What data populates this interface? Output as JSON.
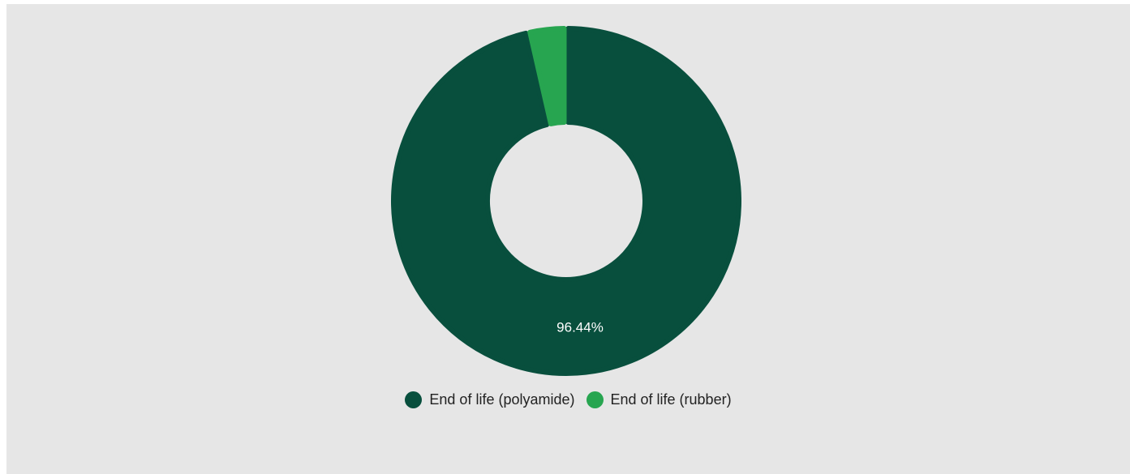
{
  "chart_data": {
    "type": "pie",
    "donut": true,
    "series": [
      {
        "name": "End of life (polyamide)",
        "value": 96.44,
        "color": "#084f3d",
        "label": "96.44%"
      },
      {
        "name": "End of life (rubber)",
        "value": 3.56,
        "color": "#27a550",
        "label": ""
      }
    ],
    "legend_position": "bottom"
  }
}
